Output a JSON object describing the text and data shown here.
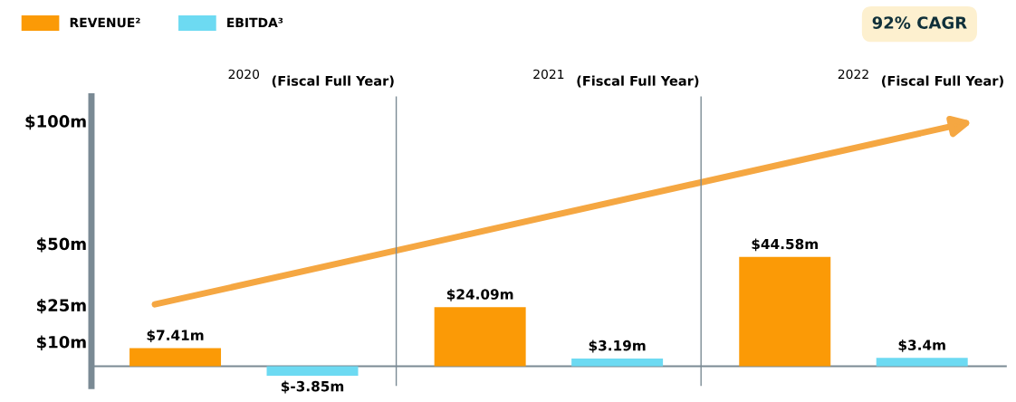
{
  "chart_data": {
    "type": "bar",
    "categories": [
      "2020",
      "2021",
      "2022"
    ],
    "series": [
      {
        "name": "REVENUE²",
        "color": "#fb9a06",
        "values": [
          7.41,
          24.09,
          44.58
        ],
        "value_labels": [
          "$7.41m",
          "$24.09m",
          "$44.58m"
        ]
      },
      {
        "name": "EBITDA³",
        "color": "#6ddaf2",
        "values": [
          -3.85,
          3.19,
          3.4
        ],
        "value_labels": [
          "$-3.85m",
          "$3.19m",
          "$3.4m"
        ]
      }
    ],
    "ylim": [
      -8,
      110
    ],
    "yticks": [
      {
        "value": 10,
        "label": "$10m"
      },
      {
        "value": 25,
        "label": "$25m"
      },
      {
        "value": 50,
        "label": "$50m"
      },
      {
        "value": 100,
        "label": "$100m"
      }
    ],
    "legend": "top left",
    "annotations": [
      "(Fiscal Full Year)",
      "(Fiscal Full Year)",
      "(Fiscal Full Year)",
      "92% CAGR"
    ]
  }
}
